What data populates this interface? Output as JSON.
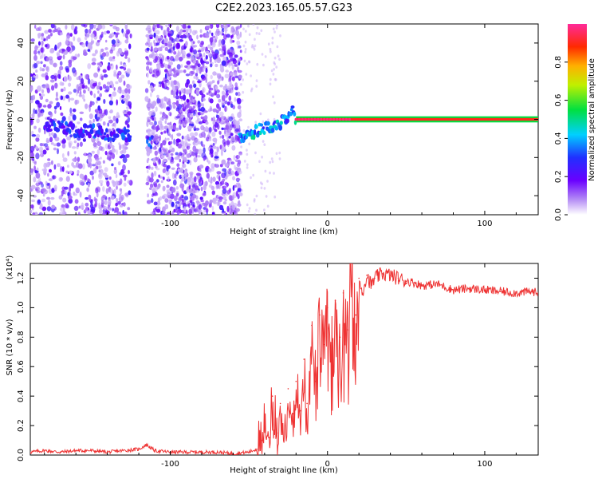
{
  "title": "C2E2.2023.165.05.57.G23",
  "colorbar": {
    "label": "Normalized spectral amplitude",
    "ticks": [
      "0.0",
      "0.2",
      "0.4",
      "0.6",
      "0.8"
    ],
    "tick_values": [
      0.0,
      0.2,
      0.4,
      0.6,
      0.8
    ],
    "range": [
      0,
      1
    ]
  },
  "chart_data": [
    {
      "type": "heatmap",
      "xlabel": "Height of straight line (km)",
      "ylabel": "Frequency (Hz)",
      "xlim": [
        -189,
        134
      ],
      "ylim": [
        -50,
        50
      ],
      "x_ticks": [
        -100,
        0,
        100
      ],
      "x_tick_labels": [
        "-100",
        "0",
        "100"
      ],
      "y_ticks": [
        -40,
        -20,
        0,
        20,
        40
      ],
      "y_tick_labels": [
        "-40",
        "-20",
        "0",
        "20",
        "40"
      ],
      "colormap": "rainbow",
      "scatter_regions": [
        {
          "x_range": [
            -189,
            -125
          ],
          "density": "medium"
        },
        {
          "x_range": [
            -115,
            -55
          ],
          "density": "high"
        }
      ],
      "gap_region": [
        -125,
        -115
      ],
      "signal_trace": {
        "x": [
          -180,
          -170,
          -160,
          -150,
          -140,
          -130,
          -120,
          -112,
          -55,
          -50,
          -45,
          -40,
          -35,
          -30,
          -25,
          -22,
          -20,
          0,
          10,
          20,
          50,
          100,
          134
        ],
        "frequency": [
          -4,
          -3,
          -6,
          -6,
          -8,
          -8,
          -10,
          -12,
          -10,
          -8,
          -6,
          -5,
          -4,
          -2,
          2,
          5,
          0,
          0,
          0,
          0,
          0,
          0,
          0
        ],
        "amplitude": [
          0.25,
          0.3,
          0.3,
          0.3,
          0.3,
          0.3,
          0.35,
          0.3,
          0.4,
          0.45,
          0.45,
          0.4,
          0.45,
          0.4,
          0.4,
          0.35,
          0.9,
          0.95,
          0.95,
          1.0,
          1.0,
          1.0,
          1.0
        ]
      }
    },
    {
      "type": "line",
      "xlabel": "Height of straight line (km)",
      "ylabel": "SNR (10 * v/v)",
      "y_multiplier": "(x10⁴)",
      "xlim": [
        -189,
        134
      ],
      "ylim": [
        0,
        1.3
      ],
      "x_ticks": [
        -100,
        0,
        100
      ],
      "x_tick_labels": [
        "-100",
        "0",
        "100"
      ],
      "y_ticks": [
        0,
        0.2,
        0.4,
        0.6,
        0.8,
        1.0,
        1.2
      ],
      "y_tick_labels": [
        "0.0",
        "0.2",
        "0.4",
        "0.6",
        "0.8",
        "1.0",
        "1.2"
      ],
      "line_color": "#ee3333",
      "series": [
        {
          "x": [
            -189,
            -180,
            -170,
            -160,
            -150,
            -140,
            -130,
            -120,
            -115,
            -110,
            -100,
            -90,
            -80,
            -70,
            -60,
            -50,
            -45,
            -42,
            -40,
            -37,
            -35,
            -32,
            -30,
            -27,
            -25,
            -22,
            -20,
            -17,
            -15,
            -13,
            -10,
            -8,
            -5,
            -2,
            0,
            3,
            5,
            8,
            10,
            13,
            15,
            18,
            20,
            22,
            25,
            28,
            30,
            35,
            40,
            45,
            50,
            55,
            60,
            70,
            80,
            90,
            100,
            110,
            120,
            130,
            134
          ],
          "y": [
            0.02,
            0.03,
            0.02,
            0.03,
            0.03,
            0.02,
            0.03,
            0.04,
            0.07,
            0.03,
            0.02,
            0.02,
            0.02,
            0.02,
            0.01,
            0.02,
            0.04,
            0.1,
            0.28,
            0.12,
            0.4,
            0.15,
            0.35,
            0.2,
            0.45,
            0.28,
            0.5,
            0.3,
            0.65,
            0.35,
            0.88,
            0.5,
            0.95,
            0.75,
            1.0,
            0.78,
            1.05,
            0.8,
            1.1,
            0.85,
            1.3,
            0.95,
            1.2,
            1.1,
            1.22,
            1.15,
            1.2,
            1.23,
            1.22,
            1.2,
            1.18,
            1.17,
            1.15,
            1.16,
            1.12,
            1.13,
            1.12,
            1.11,
            1.1,
            1.11,
            1.1
          ]
        }
      ]
    }
  ]
}
